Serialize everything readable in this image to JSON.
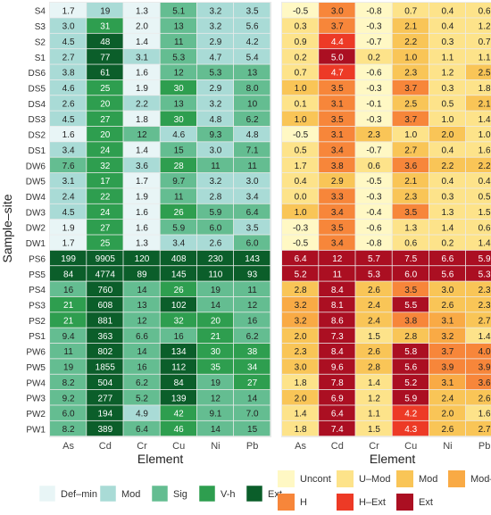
{
  "chart_data": {
    "type": "heatmap",
    "ylabel": "Sample–site",
    "xlabel": "Element",
    "rows": [
      "S4",
      "S3",
      "S2",
      "S1",
      "DS6",
      "DS5",
      "DS4",
      "DS3",
      "DS2",
      "DS1",
      "DW6",
      "DW5",
      "DW4",
      "DW3",
      "DW2",
      "DW1",
      "PS6",
      "PS5",
      "PS4",
      "PS3",
      "PS2",
      "PS1",
      "PW6",
      "PW5",
      "PW4",
      "PW3",
      "PW2",
      "PW1"
    ],
    "panels": [
      {
        "columns": [
          "As",
          "Cd",
          "Cr",
          "Cu",
          "Ni",
          "Pb"
        ],
        "values": [
          [
            "1.7",
            "19",
            "1.3",
            "5.1",
            "3.2",
            "3.5"
          ],
          [
            "3.0",
            "31",
            "2.0",
            "13",
            "3.2",
            "5.6"
          ],
          [
            "4.5",
            "48",
            "1.4",
            "11",
            "2.9",
            "4.2"
          ],
          [
            "2.7",
            "77",
            "3.1",
            "5.3",
            "4.7",
            "5.4"
          ],
          [
            "3.8",
            "61",
            "1.6",
            "12",
            "5.3",
            "13"
          ],
          [
            "4.6",
            "25",
            "1.9",
            "30",
            "2.9",
            "8.0"
          ],
          [
            "2.6",
            "20",
            "2.2",
            "13",
            "3.2",
            "10"
          ],
          [
            "4.5",
            "27",
            "1.8",
            "30",
            "4.8",
            "6.2"
          ],
          [
            "1.6",
            "20",
            "12",
            "4.6",
            "9.3",
            "4.8"
          ],
          [
            "3.4",
            "24",
            "1.4",
            "15",
            "3.0",
            "7.1"
          ],
          [
            "7.6",
            "32",
            "3.6",
            "28",
            "11",
            "11"
          ],
          [
            "3.1",
            "17",
            "1.7",
            "9.7",
            "3.2",
            "3.0"
          ],
          [
            "2.4",
            "22",
            "1.9",
            "11",
            "2.8",
            "3.4"
          ],
          [
            "4.5",
            "24",
            "1.6",
            "26",
            "5.9",
            "6.4"
          ],
          [
            "1.9",
            "27",
            "1.6",
            "5.9",
            "6.0",
            "3.5"
          ],
          [
            "1.7",
            "25",
            "1.3",
            "3.4",
            "2.6",
            "6.0"
          ],
          [
            "199",
            "9905",
            "120",
            "408",
            "230",
            "143"
          ],
          [
            "84",
            "4774",
            "89",
            "145",
            "110",
            "93"
          ],
          [
            "16",
            "760",
            "14",
            "26",
            "19",
            "11"
          ],
          [
            "21",
            "608",
            "13",
            "102",
            "14",
            "12"
          ],
          [
            "21",
            "881",
            "12",
            "32",
            "20",
            "16"
          ],
          [
            "9.4",
            "363",
            "6.6",
            "16",
            "21",
            "6.2"
          ],
          [
            "11",
            "802",
            "14",
            "134",
            "30",
            "38"
          ],
          [
            "19",
            "1855",
            "16",
            "112",
            "35",
            "34"
          ],
          [
            "8.2",
            "504",
            "6.2",
            "84",
            "19",
            "27"
          ],
          [
            "9.2",
            "277",
            "5.2",
            "139",
            "12",
            "14"
          ],
          [
            "6.0",
            "194",
            "4.9",
            "42",
            "9.1",
            "7.0"
          ],
          [
            "8.2",
            "389",
            "6.4",
            "46",
            "14",
            "15"
          ]
        ],
        "categories": [
          [
            "D",
            "M",
            "D",
            "S",
            "M",
            "M"
          ],
          [
            "M",
            "V",
            "D",
            "S",
            "M",
            "M"
          ],
          [
            "M",
            "E",
            "D",
            "S",
            "M",
            "M"
          ],
          [
            "M",
            "E",
            "M",
            "S",
            "M",
            "M"
          ],
          [
            "M",
            "E",
            "D",
            "S",
            "S",
            "S"
          ],
          [
            "M",
            "V",
            "D",
            "V",
            "M",
            "S"
          ],
          [
            "M",
            "V",
            "M",
            "S",
            "M",
            "S"
          ],
          [
            "M",
            "V",
            "D",
            "V",
            "M",
            "S"
          ],
          [
            "D",
            "V",
            "S",
            "M",
            "S",
            "M"
          ],
          [
            "M",
            "V",
            "D",
            "S",
            "M",
            "S"
          ],
          [
            "S",
            "V",
            "M",
            "V",
            "S",
            "S"
          ],
          [
            "M",
            "V",
            "D",
            "S",
            "M",
            "M"
          ],
          [
            "M",
            "V",
            "D",
            "S",
            "M",
            "M"
          ],
          [
            "M",
            "V",
            "D",
            "V",
            "S",
            "S"
          ],
          [
            "D",
            "V",
            "D",
            "S",
            "S",
            "M"
          ],
          [
            "D",
            "V",
            "D",
            "M",
            "M",
            "S"
          ],
          [
            "E",
            "E",
            "E",
            "E",
            "E",
            "E"
          ],
          [
            "E",
            "E",
            "E",
            "E",
            "E",
            "E"
          ],
          [
            "S",
            "E",
            "S",
            "V",
            "S",
            "S"
          ],
          [
            "V",
            "E",
            "S",
            "E",
            "S",
            "S"
          ],
          [
            "V",
            "E",
            "S",
            "V",
            "V",
            "S"
          ],
          [
            "S",
            "E",
            "S",
            "S",
            "V",
            "S"
          ],
          [
            "S",
            "E",
            "S",
            "E",
            "V",
            "V"
          ],
          [
            "S",
            "E",
            "S",
            "E",
            "V",
            "V"
          ],
          [
            "S",
            "E",
            "S",
            "E",
            "S",
            "V"
          ],
          [
            "S",
            "E",
            "S",
            "E",
            "S",
            "S"
          ],
          [
            "S",
            "E",
            "M",
            "V",
            "S",
            "S"
          ],
          [
            "S",
            "E",
            "S",
            "V",
            "S",
            "S"
          ]
        ]
      },
      {
        "columns": [
          "As",
          "Cd",
          "Cr",
          "Cu",
          "Ni",
          "Pb"
        ],
        "values": [
          [
            "-0.5",
            "3.0",
            "-0.8",
            "0.7",
            "0.4",
            "0.6"
          ],
          [
            "0.3",
            "3.7",
            "-0.3",
            "2.1",
            "0.4",
            "1.2"
          ],
          [
            "0.9",
            "4.4",
            "-0.7",
            "2.2",
            "0.3",
            "0.7"
          ],
          [
            "0.2",
            "5.0",
            "0.2",
            "1.0",
            "1.1",
            "1.1"
          ],
          [
            "0.7",
            "4.7",
            "-0.6",
            "2.3",
            "1.2",
            "2.5"
          ],
          [
            "1.0",
            "3.5",
            "-0.3",
            "3.7",
            "0.3",
            "1.8"
          ],
          [
            "0.1",
            "3.1",
            "-0.1",
            "2.5",
            "0.5",
            "2.1"
          ],
          [
            "1.0",
            "3.5",
            "-0.3",
            "3.7",
            "1.0",
            "1.4"
          ],
          [
            "-0.5",
            "3.1",
            "2.3",
            "1.0",
            "2.0",
            "1.0"
          ],
          [
            "0.5",
            "3.4",
            "-0.7",
            "2.7",
            "0.4",
            "1.6"
          ],
          [
            "1.7",
            "3.8",
            "0.6",
            "3.6",
            "2.2",
            "2.2"
          ],
          [
            "0.4",
            "2.9",
            "-0.5",
            "2.1",
            "0.4",
            "0.4"
          ],
          [
            "0.0",
            "3.3",
            "-0.3",
            "2.3",
            "0.3",
            "0.5"
          ],
          [
            "1.0",
            "3.4",
            "-0.4",
            "3.5",
            "1.3",
            "1.5"
          ],
          [
            "-0.3",
            "3.5",
            "-0.6",
            "1.3",
            "1.4",
            "0.6"
          ],
          [
            "-0.5",
            "3.4",
            "-0.8",
            "0.6",
            "0.2",
            "1.4"
          ],
          [
            "6.4",
            "12",
            "5.7",
            "7.5",
            "6.6",
            "5.9"
          ],
          [
            "5.2",
            "11",
            "5.3",
            "6.0",
            "5.6",
            "5.3"
          ],
          [
            "2.8",
            "8.4",
            "2.6",
            "3.5",
            "3.0",
            "2.3"
          ],
          [
            "3.2",
            "8.1",
            "2.4",
            "5.5",
            "2.6",
            "2.3"
          ],
          [
            "3.2",
            "8.6",
            "2.4",
            "3.8",
            "3.1",
            "2.7"
          ],
          [
            "2.0",
            "7.3",
            "1.5",
            "2.8",
            "3.2",
            "1.4"
          ],
          [
            "2.3",
            "8.4",
            "2.6",
            "5.8",
            "3.7",
            "4.0"
          ],
          [
            "3.0",
            "9.6",
            "2.8",
            "5.6",
            "3.9",
            "3.9"
          ],
          [
            "1.8",
            "7.8",
            "1.4",
            "5.2",
            "3.1",
            "3.6"
          ],
          [
            "2.0",
            "6.9",
            "1.2",
            "5.9",
            "2.4",
            "2.6"
          ],
          [
            "1.4",
            "6.4",
            "1.1",
            "4.2",
            "2.0",
            "1.6"
          ],
          [
            "1.8",
            "7.4",
            "1.5",
            "4.3",
            "2.6",
            "2.7"
          ]
        ],
        "categories": [
          [
            "U",
            "H",
            "U",
            "UM",
            "UM",
            "UM"
          ],
          [
            "UM",
            "H",
            "U",
            "Mo",
            "UM",
            "UM"
          ],
          [
            "UM",
            "HE",
            "U",
            "Mo",
            "UM",
            "UM"
          ],
          [
            "UM",
            "E",
            "UM",
            "Mo",
            "UM",
            "UM"
          ],
          [
            "UM",
            "HE",
            "U",
            "Mo",
            "UM",
            "Mo"
          ],
          [
            "Mo",
            "H",
            "U",
            "H",
            "UM",
            "UM"
          ],
          [
            "UM",
            "H",
            "U",
            "Mo",
            "UM",
            "Mo"
          ],
          [
            "Mo",
            "H",
            "U",
            "H",
            "UM",
            "UM"
          ],
          [
            "U",
            "H",
            "Mo",
            "UM",
            "Mo",
            "UM"
          ],
          [
            "UM",
            "H",
            "U",
            "Mo",
            "UM",
            "UM"
          ],
          [
            "UM",
            "H",
            "UM",
            "H",
            "Mo",
            "Mo"
          ],
          [
            "UM",
            "Mo",
            "U",
            "Mo",
            "UM",
            "UM"
          ],
          [
            "UM",
            "H",
            "U",
            "Mo",
            "UM",
            "UM"
          ],
          [
            "Mo",
            "H",
            "U",
            "H",
            "UM",
            "UM"
          ],
          [
            "U",
            "H",
            "U",
            "UM",
            "UM",
            "UM"
          ],
          [
            "U",
            "H",
            "U",
            "UM",
            "UM",
            "UM"
          ],
          [
            "E",
            "E",
            "E",
            "E",
            "E",
            "E"
          ],
          [
            "E",
            "E",
            "E",
            "E",
            "E",
            "E"
          ],
          [
            "Mo",
            "E",
            "Mo",
            "H",
            "Mo",
            "Mo"
          ],
          [
            "MH",
            "E",
            "Mo",
            "E",
            "Mo",
            "Mo"
          ],
          [
            "MH",
            "E",
            "Mo",
            "H",
            "MH",
            "Mo"
          ],
          [
            "Mo",
            "E",
            "UM",
            "Mo",
            "MH",
            "UM"
          ],
          [
            "Mo",
            "E",
            "Mo",
            "E",
            "H",
            "H"
          ],
          [
            "Mo",
            "E",
            "Mo",
            "E",
            "H",
            "H"
          ],
          [
            "UM",
            "E",
            "UM",
            "E",
            "MH",
            "H"
          ],
          [
            "Mo",
            "E",
            "UM",
            "E",
            "Mo",
            "Mo"
          ],
          [
            "UM",
            "E",
            "UM",
            "HE",
            "Mo",
            "UM"
          ],
          [
            "UM",
            "E",
            "UM",
            "HE",
            "Mo",
            "Mo"
          ]
        ]
      }
    ],
    "legends": [
      {
        "items": [
          {
            "key": "D",
            "label": "Def–min",
            "color": "#e8f5f6"
          },
          {
            "key": "M",
            "label": "Mod",
            "color": "#a9dbd6"
          },
          {
            "key": "S",
            "label": "Sig",
            "color": "#64bd91"
          },
          {
            "key": "V",
            "label": "V-h",
            "color": "#2e9e4f"
          },
          {
            "key": "E",
            "label": "Ext",
            "color": "#0b5e2a"
          }
        ]
      },
      {
        "items": [
          {
            "key": "U",
            "label": "Uncont",
            "color": "#fff8c4"
          },
          {
            "key": "UM",
            "label": "U–Mod",
            "color": "#fde38a"
          },
          {
            "key": "Mo",
            "label": "Mod",
            "color": "#f9c557"
          },
          {
            "key": "MH",
            "label": "Mod–H",
            "color": "#f9aa45"
          },
          {
            "key": "H",
            "label": "H",
            "color": "#f7863a"
          },
          {
            "key": "HE",
            "label": "H–Ext",
            "color": "#ed3a26"
          },
          {
            "key": "E",
            "label": "Ext",
            "color": "#ab0f22"
          }
        ]
      }
    ]
  }
}
